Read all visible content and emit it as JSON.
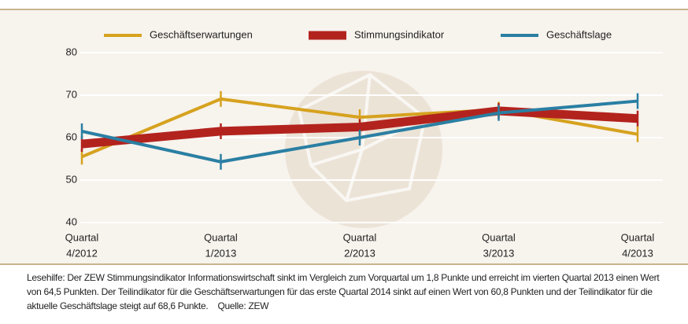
{
  "chart_data": {
    "type": "line",
    "categories": [
      [
        "Quartal",
        "4/2012"
      ],
      [
        "Quartal",
        "1/2013"
      ],
      [
        "Quartal",
        "2/2013"
      ],
      [
        "Quartal",
        "3/2013"
      ],
      [
        "Quartal",
        "4/2013"
      ]
    ],
    "series": [
      {
        "name": "Geschäftserwartungen",
        "color": "#d6a21e",
        "width": 4,
        "values": [
          55.5,
          69.1,
          64.8,
          66.6,
          60.8
        ]
      },
      {
        "name": "Stimmungsindikator",
        "color": "#b3231e",
        "width": 11,
        "values": [
          58.5,
          61.5,
          62.5,
          66.3,
          64.5
        ]
      },
      {
        "name": "Geschäftslage",
        "color": "#2a7fa3",
        "width": 4,
        "values": [
          61.5,
          54.3,
          60.0,
          65.8,
          68.6
        ]
      }
    ],
    "ylim": [
      40,
      80
    ],
    "yticks": [
      40,
      50,
      60,
      70,
      80
    ],
    "grid": true,
    "note": "Lesehilfe: Der ZEW Stimmungsindikator Informationswirtschaft sinkt im Vergleich zum Vorquartal um 1,8 Punkte und erreicht im vierten Quartal 2013 einen Wert von 64,5 Punkten. Der Teilindikator für die Geschäftserwartungen für das erste Quartal 2014 sinkt auf einen Wert von 60,8 Punkten und der Teilindikator für die aktuelle Geschäftslage steigt auf 68,6 Punkte.",
    "source": "Quelle: ZEW"
  }
}
